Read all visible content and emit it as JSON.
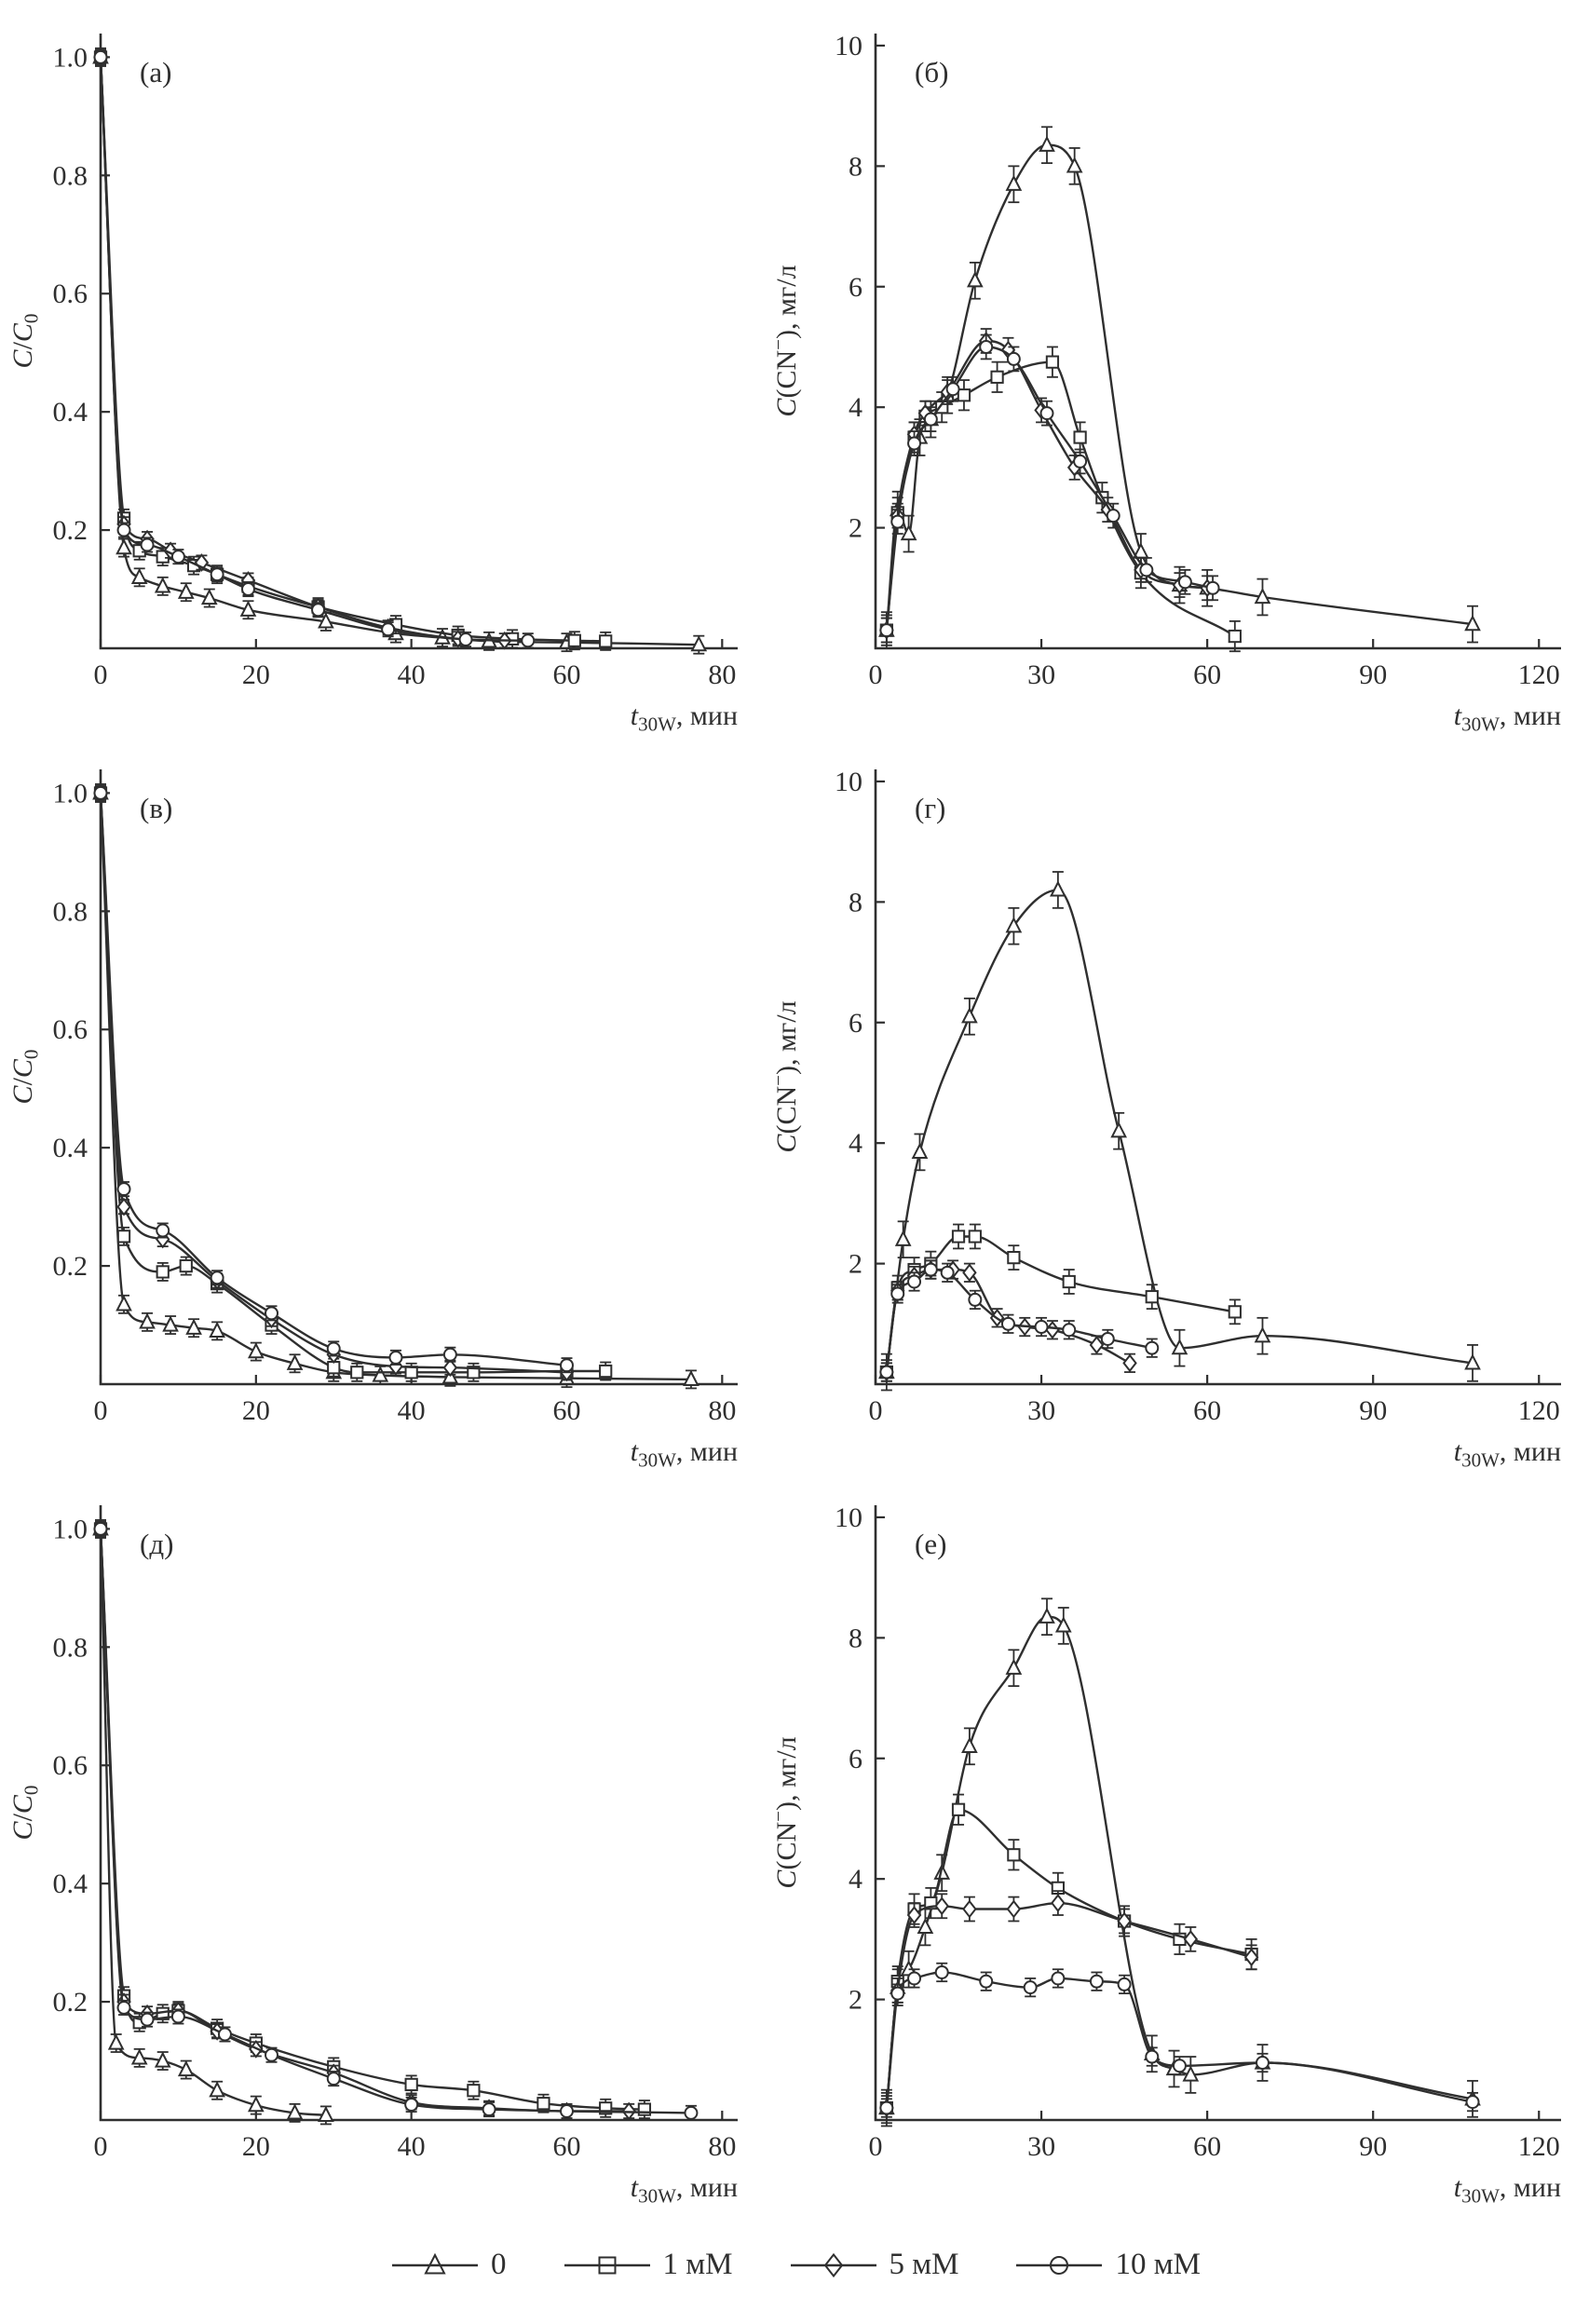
{
  "figure": {
    "background": "#ffffff",
    "ink": "#2f2f2f"
  },
  "legend": {
    "items": [
      {
        "label": "0",
        "marker": "triangle"
      },
      {
        "label": "1 мМ",
        "marker": "square"
      },
      {
        "label": "5 мМ",
        "marker": "diamond"
      },
      {
        "label": "10 мМ",
        "marker": "circle"
      }
    ]
  },
  "axis_labels": {
    "x_parts": [
      {
        "t": "t",
        "i": true
      },
      {
        "t": "30W",
        "sub": true
      },
      {
        "t": ", мин"
      }
    ],
    "y_left_parts": [
      {
        "t": "C",
        "i": true
      },
      {
        "t": "/"
      },
      {
        "t": "C",
        "i": true
      },
      {
        "t": "0",
        "sub": true
      }
    ],
    "y_right_parts": [
      {
        "t": "C",
        "i": true
      },
      {
        "t": "(CN"
      },
      {
        "t": "−",
        "sup": true
      },
      {
        "t": "), мг/л"
      }
    ]
  },
  "chart_data": [
    {
      "id": "a",
      "letter": "(а)",
      "type": "line",
      "axis": "left",
      "xlim": [
        0,
        82
      ],
      "ylim": [
        0,
        1.04
      ],
      "xticks": [
        0,
        20,
        40,
        60,
        80
      ],
      "yticks": [
        0.2,
        0.4,
        0.6,
        0.8,
        1.0
      ],
      "ytick_decimals": 1,
      "series": [
        {
          "name": "0",
          "marker": "triangle",
          "err": 0.015,
          "x": [
            0,
            3,
            5,
            8,
            11,
            14,
            19,
            29,
            38,
            44,
            50,
            60,
            77
          ],
          "y": [
            1.0,
            0.17,
            0.12,
            0.105,
            0.095,
            0.085,
            0.065,
            0.045,
            0.025,
            0.018,
            0.012,
            0.01,
            0.006
          ]
        },
        {
          "name": "1 мМ",
          "marker": "square",
          "err": 0.015,
          "x": [
            0,
            3,
            5,
            8,
            12,
            15,
            19,
            28,
            38,
            46,
            53,
            61,
            65
          ],
          "y": [
            1.0,
            0.22,
            0.165,
            0.155,
            0.14,
            0.125,
            0.105,
            0.07,
            0.04,
            0.022,
            0.016,
            0.013,
            0.012
          ]
        },
        {
          "name": "5 мМ",
          "marker": "diamond",
          "err": 0.012,
          "x": [
            0,
            3,
            6,
            9,
            13,
            19,
            28,
            37,
            46,
            52
          ],
          "y": [
            1.0,
            0.21,
            0.185,
            0.165,
            0.145,
            0.115,
            0.07,
            0.035,
            0.016,
            0.013
          ]
        },
        {
          "name": "10 мМ",
          "marker": "circle",
          "err": 0.012,
          "x": [
            0,
            3,
            6,
            10,
            15,
            19,
            28,
            37,
            47,
            55
          ],
          "y": [
            1.0,
            0.2,
            0.175,
            0.155,
            0.125,
            0.1,
            0.065,
            0.032,
            0.015,
            0.013
          ]
        }
      ]
    },
    {
      "id": "b",
      "letter": "(б)",
      "type": "line",
      "axis": "right",
      "xlim": [
        0,
        124
      ],
      "ylim": [
        0,
        10.2
      ],
      "xticks": [
        0,
        30,
        60,
        90,
        120
      ],
      "yticks": [
        2,
        4,
        6,
        8,
        10
      ],
      "ytick_decimals": 0,
      "series": [
        {
          "name": "0",
          "marker": "triangle",
          "err": 0.3,
          "x": [
            2,
            4,
            6,
            8,
            10,
            13,
            18,
            25,
            31,
            36,
            48,
            55,
            60,
            70,
            108
          ],
          "y": [
            0.3,
            2.3,
            1.9,
            3.5,
            3.8,
            4.2,
            6.1,
            7.7,
            8.35,
            8.0,
            1.6,
            1.05,
            1.0,
            0.85,
            0.4
          ]
        },
        {
          "name": "1 мМ",
          "marker": "square",
          "err": 0.25,
          "x": [
            2,
            4,
            7,
            9,
            12,
            16,
            22,
            32,
            37,
            41,
            48,
            65
          ],
          "y": [
            0.3,
            2.25,
            3.5,
            3.85,
            4.0,
            4.2,
            4.5,
            4.75,
            3.5,
            2.5,
            1.25,
            0.2
          ]
        },
        {
          "name": "5 мМ",
          "marker": "diamond",
          "err": 0.2,
          "x": [
            2,
            4,
            7,
            9,
            13,
            20,
            24,
            30,
            36,
            42,
            48,
            55,
            60
          ],
          "y": [
            0.3,
            2.2,
            3.55,
            3.9,
            4.25,
            5.1,
            4.95,
            3.95,
            3.0,
            2.3,
            1.3,
            1.05,
            1.0
          ]
        },
        {
          "name": "10 мМ",
          "marker": "circle",
          "err": 0.2,
          "x": [
            2,
            4,
            7,
            10,
            14,
            20,
            25,
            31,
            37,
            43,
            49,
            56,
            61
          ],
          "y": [
            0.3,
            2.1,
            3.4,
            3.8,
            4.3,
            5.0,
            4.8,
            3.9,
            3.1,
            2.2,
            1.3,
            1.1,
            1.0
          ]
        }
      ]
    },
    {
      "id": "v",
      "letter": "(в)",
      "type": "line",
      "axis": "left",
      "xlim": [
        0,
        82
      ],
      "ylim": [
        0,
        1.04
      ],
      "xticks": [
        0,
        20,
        40,
        60,
        80
      ],
      "yticks": [
        0.2,
        0.4,
        0.6,
        0.8,
        1.0
      ],
      "ytick_decimals": 1,
      "series": [
        {
          "name": "0",
          "marker": "triangle",
          "err": 0.015,
          "x": [
            0,
            3,
            6,
            9,
            12,
            15,
            20,
            25,
            30,
            36,
            45,
            60,
            76
          ],
          "y": [
            1.0,
            0.135,
            0.105,
            0.1,
            0.095,
            0.09,
            0.055,
            0.035,
            0.02,
            0.015,
            0.012,
            0.01,
            0.008
          ]
        },
        {
          "name": "1 мМ",
          "marker": "square",
          "err": 0.015,
          "x": [
            0,
            3,
            8,
            11,
            15,
            22,
            30,
            33,
            40,
            48,
            60,
            65
          ],
          "y": [
            1.0,
            0.25,
            0.19,
            0.2,
            0.17,
            0.1,
            0.028,
            0.02,
            0.02,
            0.02,
            0.022,
            0.022
          ]
        },
        {
          "name": "5 мМ",
          "marker": "diamond",
          "err": 0.012,
          "x": [
            0,
            3,
            8,
            15,
            22,
            30,
            38,
            45,
            60
          ],
          "y": [
            1.0,
            0.3,
            0.245,
            0.175,
            0.11,
            0.05,
            0.03,
            0.028,
            0.02
          ]
        },
        {
          "name": "10 мМ",
          "marker": "circle",
          "err": 0.012,
          "x": [
            0,
            3,
            8,
            15,
            22,
            30,
            38,
            45,
            60
          ],
          "y": [
            1.0,
            0.33,
            0.26,
            0.18,
            0.12,
            0.06,
            0.045,
            0.05,
            0.032
          ]
        }
      ]
    },
    {
      "id": "g",
      "letter": "(г)",
      "type": "line",
      "axis": "right",
      "xlim": [
        0,
        124
      ],
      "ylim": [
        0,
        10.2
      ],
      "xticks": [
        0,
        30,
        60,
        90,
        120
      ],
      "yticks": [
        2,
        4,
        6,
        8,
        10
      ],
      "ytick_decimals": 0,
      "series": [
        {
          "name": "0",
          "marker": "triangle",
          "err": 0.3,
          "x": [
            2,
            5,
            8,
            17,
            25,
            33,
            44,
            55,
            70,
            108
          ],
          "y": [
            0.2,
            2.4,
            3.85,
            6.1,
            7.6,
            8.2,
            4.2,
            0.6,
            0.8,
            0.35
          ]
        },
        {
          "name": "1 мМ",
          "marker": "square",
          "err": 0.2,
          "x": [
            2,
            4,
            7,
            10,
            15,
            18,
            25,
            35,
            50,
            65
          ],
          "y": [
            0.2,
            1.6,
            1.9,
            2.0,
            2.45,
            2.45,
            2.1,
            1.7,
            1.45,
            1.2
          ]
        },
        {
          "name": "5 мМ",
          "marker": "diamond",
          "err": 0.15,
          "x": [
            2,
            4,
            7,
            10,
            14,
            17,
            22,
            27,
            32,
            40,
            46
          ],
          "y": [
            0.2,
            1.55,
            1.8,
            1.9,
            1.9,
            1.85,
            1.1,
            0.95,
            0.9,
            0.65,
            0.35
          ]
        },
        {
          "name": "10 мМ",
          "marker": "circle",
          "err": 0.15,
          "x": [
            2,
            4,
            7,
            10,
            13,
            18,
            24,
            30,
            35,
            42,
            50
          ],
          "y": [
            0.2,
            1.5,
            1.7,
            1.9,
            1.85,
            1.4,
            1.0,
            0.95,
            0.9,
            0.75,
            0.6
          ]
        }
      ]
    },
    {
      "id": "d",
      "letter": "(д)",
      "type": "line",
      "axis": "left",
      "xlim": [
        0,
        82
      ],
      "ylim": [
        0,
        1.04
      ],
      "xticks": [
        0,
        20,
        40,
        60,
        80
      ],
      "yticks": [
        0.2,
        0.4,
        0.6,
        0.8,
        1.0
      ],
      "ytick_decimals": 1,
      "series": [
        {
          "name": "0",
          "marker": "triangle",
          "err": 0.015,
          "x": [
            0,
            2,
            5,
            8,
            11,
            15,
            20,
            25,
            29
          ],
          "y": [
            1.0,
            0.13,
            0.105,
            0.1,
            0.085,
            0.05,
            0.025,
            0.012,
            0.008
          ]
        },
        {
          "name": "1 мМ",
          "marker": "square",
          "err": 0.015,
          "x": [
            0,
            3,
            5,
            8,
            10,
            15,
            20,
            30,
            40,
            48,
            57,
            65,
            70
          ],
          "y": [
            1.0,
            0.21,
            0.165,
            0.18,
            0.185,
            0.155,
            0.13,
            0.09,
            0.06,
            0.05,
            0.028,
            0.02,
            0.018
          ]
        },
        {
          "name": "5 мМ",
          "marker": "diamond",
          "err": 0.012,
          "x": [
            0,
            3,
            6,
            10,
            15,
            20,
            30,
            40,
            50,
            60,
            68
          ],
          "y": [
            1.0,
            0.2,
            0.18,
            0.185,
            0.15,
            0.12,
            0.08,
            0.03,
            0.02,
            0.015,
            0.015
          ]
        },
        {
          "name": "10 мМ",
          "marker": "circle",
          "err": 0.012,
          "x": [
            0,
            3,
            6,
            10,
            16,
            22,
            30,
            40,
            50,
            60,
            76
          ],
          "y": [
            1.0,
            0.19,
            0.17,
            0.175,
            0.145,
            0.11,
            0.07,
            0.026,
            0.018,
            0.015,
            0.012
          ]
        }
      ]
    },
    {
      "id": "e",
      "letter": "(е)",
      "type": "line",
      "axis": "right",
      "xlim": [
        0,
        124
      ],
      "ylim": [
        0,
        10.2
      ],
      "xticks": [
        0,
        30,
        60,
        90,
        120
      ],
      "yticks": [
        2,
        4,
        6,
        8,
        10
      ],
      "ytick_decimals": 0,
      "series": [
        {
          "name": "0",
          "marker": "triangle",
          "err": 0.3,
          "x": [
            2,
            4,
            6,
            9,
            12,
            17,
            25,
            31,
            34,
            50,
            54,
            57,
            70,
            108
          ],
          "y": [
            0.2,
            2.2,
            2.5,
            3.2,
            4.1,
            6.2,
            7.5,
            8.35,
            8.2,
            1.1,
            0.85,
            0.75,
            0.95,
            0.35
          ]
        },
        {
          "name": "1 мМ",
          "marker": "square",
          "err": 0.25,
          "x": [
            2,
            4,
            7,
            10,
            15,
            25,
            33,
            45,
            55,
            68
          ],
          "y": [
            0.2,
            2.3,
            3.5,
            3.6,
            5.15,
            4.4,
            3.85,
            3.3,
            3.0,
            2.75
          ]
        },
        {
          "name": "5 мМ",
          "marker": "diamond",
          "err": 0.2,
          "x": [
            2,
            4,
            7,
            12,
            17,
            25,
            33,
            45,
            57,
            68
          ],
          "y": [
            0.2,
            2.15,
            3.4,
            3.55,
            3.5,
            3.5,
            3.6,
            3.3,
            3.0,
            2.7
          ]
        },
        {
          "name": "10 мМ",
          "marker": "circle",
          "err": 0.15,
          "x": [
            2,
            4,
            7,
            12,
            20,
            28,
            33,
            40,
            45,
            50,
            55,
            70,
            108
          ],
          "y": [
            0.2,
            2.1,
            2.35,
            2.45,
            2.3,
            2.2,
            2.35,
            2.3,
            2.25,
            1.05,
            0.9,
            0.95,
            0.3
          ]
        }
      ]
    }
  ]
}
